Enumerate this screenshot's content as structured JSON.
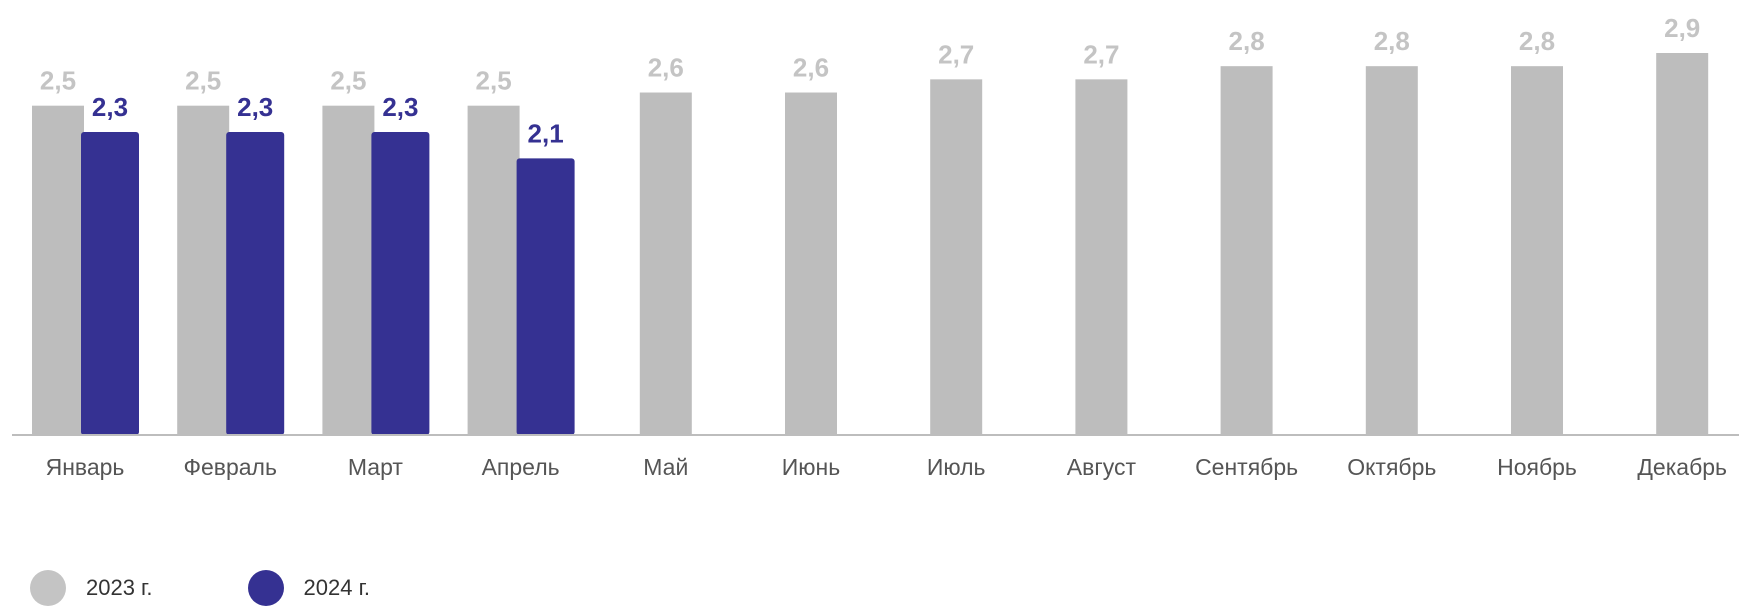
{
  "chart_data": {
    "type": "bar",
    "categories": [
      "Январь",
      "Февраль",
      "Март",
      "Апрель",
      "Май",
      "Июнь",
      "Июль",
      "Август",
      "Сентябрь",
      "Октябрь",
      "Ноябрь",
      "Декабрь"
    ],
    "series": [
      {
        "name": "2023 г.",
        "color": "#bdbdbd",
        "label_color": "#c4c4c4",
        "values": [
          2.5,
          2.5,
          2.5,
          2.5,
          2.6,
          2.6,
          2.7,
          2.7,
          2.8,
          2.8,
          2.8,
          2.9
        ],
        "labels": [
          "2,5",
          "2,5",
          "2,5",
          "2,5",
          "2,6",
          "2,6",
          "2,7",
          "2,7",
          "2,8",
          "2,8",
          "2,8",
          "2,9"
        ]
      },
      {
        "name": "2024 г.",
        "color": "#353192",
        "label_color": "#353192",
        "values": [
          2.3,
          2.3,
          2.3,
          2.1,
          null,
          null,
          null,
          null,
          null,
          null,
          null,
          null
        ],
        "labels": [
          "2,3",
          "2,3",
          "2,3",
          "2,1",
          "",
          "",
          "",
          "",
          "",
          "",
          "",
          ""
        ]
      }
    ],
    "ylim": [
      0,
      2.9
    ],
    "grid": false,
    "legend": "bottom-left"
  },
  "legend": {
    "items": [
      {
        "label": "2023 г.",
        "color": "#c4c4c4"
      },
      {
        "label": "2024 г.",
        "color": "#353192"
      }
    ]
  }
}
